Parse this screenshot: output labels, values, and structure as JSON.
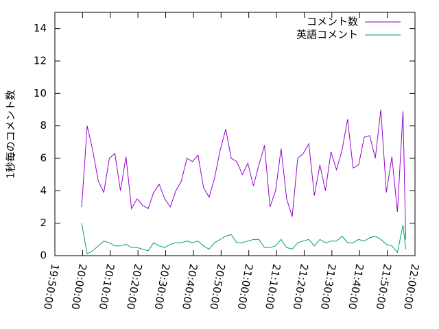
{
  "chart_data": {
    "type": "line",
    "ylabel": "1秒毎のコメント数",
    "x": [
      71980,
      72100,
      72220,
      72340,
      72460,
      72580,
      72700,
      72820,
      72940,
      73060,
      73180,
      73300,
      73420,
      73540,
      73660,
      73780,
      73900,
      74020,
      74140,
      74260,
      74380,
      74500,
      74620,
      74740,
      74860,
      74980,
      75100,
      75220,
      75340,
      75460,
      75580,
      75700,
      75820,
      75940,
      76060,
      76180,
      76300,
      76420,
      76540,
      76660,
      76780,
      76900,
      77020,
      77140,
      77260,
      77380,
      77500,
      77620,
      77740,
      77860,
      77980,
      78100,
      78220,
      78340,
      78460,
      78580,
      78700,
      78820,
      78940,
      79000
    ],
    "series": [
      {
        "name": "コメント数",
        "color": "#9400d3",
        "values": [
          3.0,
          8.0,
          6.5,
          4.6,
          3.9,
          6.0,
          6.3,
          4.0,
          6.1,
          2.9,
          3.5,
          3.1,
          2.9,
          3.9,
          4.4,
          3.5,
          3.0,
          4.0,
          4.6,
          6.0,
          5.8,
          6.2,
          4.2,
          3.6,
          4.8,
          6.5,
          7.8,
          6.0,
          5.8,
          5.0,
          5.7,
          4.3,
          5.6,
          6.8,
          3.0,
          4.0,
          6.6,
          3.5,
          2.4,
          6.0,
          6.3,
          6.9,
          3.7,
          5.6,
          4.0,
          6.4,
          5.3,
          6.5,
          8.4,
          5.4,
          5.6,
          7.3,
          7.4,
          6.0,
          9.0,
          3.9,
          6.1,
          2.7,
          8.9,
          1.0
        ]
      },
      {
        "name": "英語コメント",
        "color": "#009e73",
        "values": [
          2.0,
          0.1,
          0.3,
          0.6,
          0.9,
          0.8,
          0.6,
          0.6,
          0.7,
          0.5,
          0.5,
          0.4,
          0.3,
          0.8,
          0.6,
          0.5,
          0.7,
          0.8,
          0.8,
          0.9,
          0.8,
          0.9,
          0.6,
          0.4,
          0.8,
          1.0,
          1.2,
          1.3,
          0.8,
          0.8,
          0.9,
          1.0,
          1.0,
          0.5,
          0.5,
          0.6,
          1.0,
          0.5,
          0.4,
          0.8,
          0.9,
          1.0,
          0.6,
          1.0,
          0.8,
          0.9,
          0.9,
          1.2,
          0.8,
          0.8,
          1.0,
          0.9,
          1.1,
          1.2,
          1.0,
          0.7,
          0.6,
          0.2,
          1.9,
          0.4
        ]
      }
    ],
    "xlim": [
      71400,
      79200
    ],
    "xticks": [
      {
        "value": 71400,
        "label": "19:50:00"
      },
      {
        "value": 72000,
        "label": "20:00:00"
      },
      {
        "value": 72600,
        "label": "20:10:00"
      },
      {
        "value": 73200,
        "label": "20:20:00"
      },
      {
        "value": 73800,
        "label": "20:30:00"
      },
      {
        "value": 74400,
        "label": "20:40:00"
      },
      {
        "value": 75000,
        "label": "20:50:00"
      },
      {
        "value": 75600,
        "label": "21:00:00"
      },
      {
        "value": 76200,
        "label": "21:10:00"
      },
      {
        "value": 76800,
        "label": "21:20:00"
      },
      {
        "value": 77400,
        "label": "21:30:00"
      },
      {
        "value": 78000,
        "label": "21:40:00"
      },
      {
        "value": 78600,
        "label": "21:50:00"
      },
      {
        "value": 79200,
        "label": "22:00:00"
      }
    ],
    "ylim": [
      0,
      15
    ],
    "yticks": [
      0,
      2,
      4,
      6,
      8,
      10,
      12,
      14
    ],
    "legend": "top-right"
  }
}
